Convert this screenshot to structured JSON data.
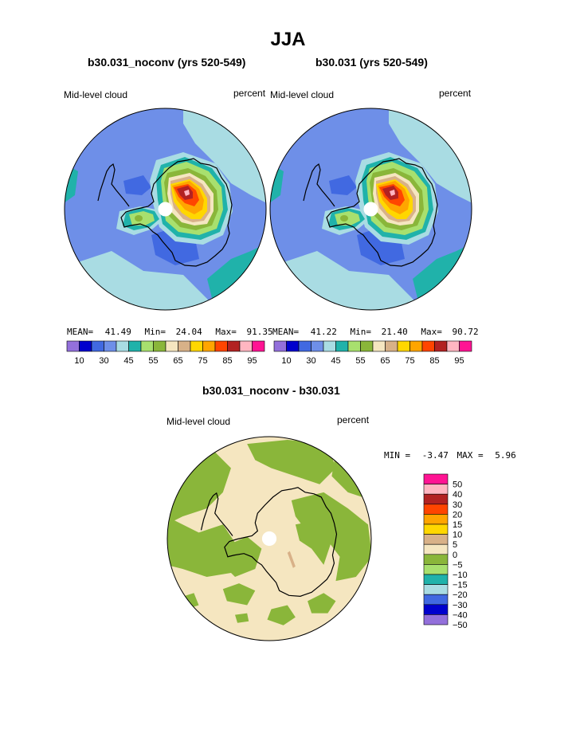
{
  "page_title": "JJA",
  "colors": {
    "continent": "#000000",
    "pole": "#ffffff",
    "bg": "#ffffff"
  },
  "chart_data": [
    {
      "type": "heatmap",
      "projection": "south-polar-stereographic",
      "title": "b30.031_noconv (yrs 520-549)",
      "left_label": "Mid-level cloud",
      "right_label": "percent",
      "stats": {
        "mean_label": "MEAN=",
        "mean": "41.49",
        "min_label": "Min=",
        "min": "24.04",
        "max_label": "Max=",
        "max": "91.35"
      },
      "levels": [
        10,
        20,
        30,
        40,
        45,
        50,
        55,
        60,
        65,
        70,
        75,
        80,
        85,
        90,
        95
      ],
      "level_labels": [
        "10",
        "30",
        "45",
        "55",
        "65",
        "75",
        "85",
        "95"
      ],
      "colors": [
        "#9370db",
        "#0000cd",
        "#4169e1",
        "#6e8fe8",
        "#a9dce3",
        "#20b2aa",
        "#a8e06e",
        "#8ab63a",
        "#f5e6c0",
        "#d8b188",
        "#ffd700",
        "#ffa500",
        "#ff4500",
        "#b22222",
        "#ffb6c1",
        "#ff1493"
      ]
    },
    {
      "type": "heatmap",
      "projection": "south-polar-stereographic",
      "title": "b30.031 (yrs 520-549)",
      "left_label": "Mid-level cloud",
      "right_label": "percent",
      "stats": {
        "mean_label": "MEAN=",
        "mean": "41.22",
        "min_label": "Min=",
        "min": "21.40",
        "max_label": "Max=",
        "max": "90.72"
      },
      "levels": [
        10,
        20,
        30,
        40,
        45,
        50,
        55,
        60,
        65,
        70,
        75,
        80,
        85,
        90,
        95
      ],
      "level_labels": [
        "10",
        "30",
        "45",
        "55",
        "65",
        "75",
        "85",
        "95"
      ],
      "colors": [
        "#9370db",
        "#0000cd",
        "#4169e1",
        "#6e8fe8",
        "#a9dce3",
        "#20b2aa",
        "#a8e06e",
        "#8ab63a",
        "#f5e6c0",
        "#d8b188",
        "#ffd700",
        "#ffa500",
        "#ff4500",
        "#b22222",
        "#ffb6c1",
        "#ff1493"
      ]
    },
    {
      "type": "heatmap",
      "projection": "south-polar-stereographic",
      "title": "b30.031_noconv - b30.031",
      "left_label": "Mid-level cloud",
      "right_label": "percent",
      "stats": {
        "min_label": "MIN =",
        "min": "-3.47",
        "max_label": "MAX =",
        "max": "5.96"
      },
      "levels": [
        50,
        40,
        30,
        20,
        15,
        10,
        5,
        0,
        -5,
        -10,
        -15,
        -20,
        -30,
        -40,
        -50
      ],
      "level_labels": [
        "50",
        "40",
        "30",
        "20",
        "15",
        "10",
        "5",
        "0",
        "−5",
        "−10",
        "−15",
        "−20",
        "−30",
        "−40",
        "−50"
      ],
      "colors": [
        "#ff1493",
        "#ffb6c1",
        "#b22222",
        "#ff4500",
        "#ffa500",
        "#ffd700",
        "#d8b188",
        "#f5e6c0",
        "#8ab63a",
        "#a8e06e",
        "#20b2aa",
        "#a9dce3",
        "#4169e1",
        "#0000cd",
        "#9370db"
      ]
    }
  ]
}
